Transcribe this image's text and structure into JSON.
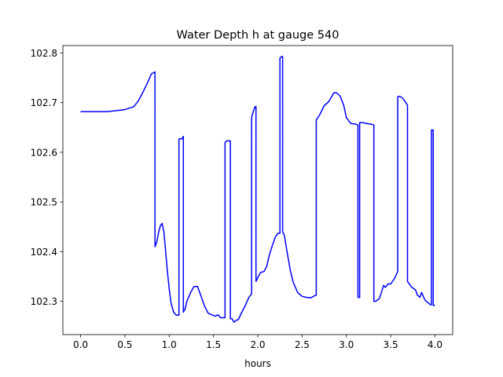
{
  "chart_data": {
    "type": "line",
    "title": "Water Depth h at gauge 540",
    "xlabel": "hours",
    "ylabel": "",
    "xlim": [
      -0.2,
      4.2
    ],
    "ylim": [
      102.233,
      102.815
    ],
    "xticks": [
      0.0,
      0.5,
      1.0,
      1.5,
      2.0,
      2.5,
      3.0,
      3.5,
      4.0
    ],
    "xtick_labels": [
      "0.0",
      "0.5",
      "1.0",
      "1.5",
      "2.0",
      "2.5",
      "3.0",
      "3.5",
      "4.0"
    ],
    "yticks": [
      102.3,
      102.4,
      102.5,
      102.6,
      102.7,
      102.8
    ],
    "ytick_labels": [
      "102.3",
      "102.4",
      "102.5",
      "102.6",
      "102.7",
      "102.8"
    ],
    "grid": false,
    "legend": "none",
    "series": [
      {
        "color": "#0000ff",
        "x": [
          0.0,
          0.3,
          0.5,
          0.6,
          0.65,
          0.7,
          0.75,
          0.8,
          0.84,
          0.84,
          0.86,
          0.88,
          0.9,
          0.92,
          0.94,
          0.96,
          0.98,
          1.0,
          1.02,
          1.05,
          1.08,
          1.11,
          1.11,
          1.14,
          1.16,
          1.16,
          1.18,
          1.2,
          1.24,
          1.28,
          1.32,
          1.36,
          1.4,
          1.44,
          1.48,
          1.52,
          1.55,
          1.58,
          1.6,
          1.63,
          1.63,
          1.65,
          1.67,
          1.69,
          1.69,
          1.71,
          1.73,
          1.76,
          1.78,
          1.82,
          1.86,
          1.9,
          1.93,
          1.93,
          1.95,
          1.97,
          1.98,
          1.98,
          2.0,
          2.03,
          2.07,
          2.1,
          2.13,
          2.16,
          2.2,
          2.23,
          2.25,
          2.25,
          2.27,
          2.28,
          2.28,
          2.3,
          2.33,
          2.37,
          2.4,
          2.45,
          2.5,
          2.55,
          2.6,
          2.65,
          2.66,
          2.66,
          2.7,
          2.75,
          2.8,
          2.86,
          2.89,
          2.93,
          2.97,
          3.0,
          3.05,
          3.1,
          3.13,
          3.13,
          3.15,
          3.15,
          3.18,
          3.23,
          3.27,
          3.31,
          3.31,
          3.33,
          3.37,
          3.39,
          3.42,
          3.44,
          3.47,
          3.5,
          3.54,
          3.58,
          3.58,
          3.6,
          3.63,
          3.66,
          3.69,
          3.69,
          3.71,
          3.74,
          3.78,
          3.8,
          3.83,
          3.85,
          3.85,
          3.88,
          3.9,
          3.93,
          3.95,
          3.96,
          3.96,
          3.98,
          3.98,
          4.0
        ],
        "y": [
          102.682,
          102.682,
          102.686,
          102.692,
          102.703,
          102.72,
          102.738,
          102.758,
          102.762,
          102.41,
          102.42,
          102.438,
          102.452,
          102.457,
          102.44,
          102.4,
          102.36,
          102.325,
          102.298,
          102.278,
          102.272,
          102.272,
          102.627,
          102.627,
          102.632,
          102.278,
          102.285,
          102.3,
          102.317,
          102.33,
          102.33,
          102.31,
          102.29,
          102.276,
          102.273,
          102.27,
          102.273,
          102.267,
          102.267,
          102.267,
          102.62,
          102.623,
          102.623,
          102.623,
          102.265,
          102.265,
          102.258,
          102.262,
          102.263,
          102.278,
          102.292,
          102.308,
          102.315,
          102.67,
          102.683,
          102.692,
          102.692,
          102.34,
          102.348,
          102.358,
          102.36,
          102.37,
          102.393,
          102.41,
          102.43,
          102.437,
          102.437,
          102.79,
          102.793,
          102.793,
          102.44,
          102.433,
          102.4,
          102.36,
          102.338,
          102.318,
          102.31,
          102.308,
          102.307,
          102.312,
          102.312,
          102.665,
          102.676,
          102.694,
          102.702,
          102.72,
          102.72,
          102.713,
          102.695,
          102.67,
          102.658,
          102.657,
          102.655,
          102.308,
          102.308,
          102.66,
          102.66,
          102.658,
          102.657,
          102.655,
          102.3,
          102.3,
          102.305,
          102.315,
          102.332,
          102.328,
          102.335,
          102.335,
          102.345,
          102.36,
          102.712,
          102.713,
          102.71,
          102.703,
          102.695,
          102.34,
          102.335,
          102.328,
          102.323,
          102.313,
          102.308,
          102.318,
          102.318,
          102.305,
          102.3,
          102.296,
          102.293,
          102.293,
          102.645,
          102.645,
          102.292,
          102.292
        ]
      }
    ]
  }
}
